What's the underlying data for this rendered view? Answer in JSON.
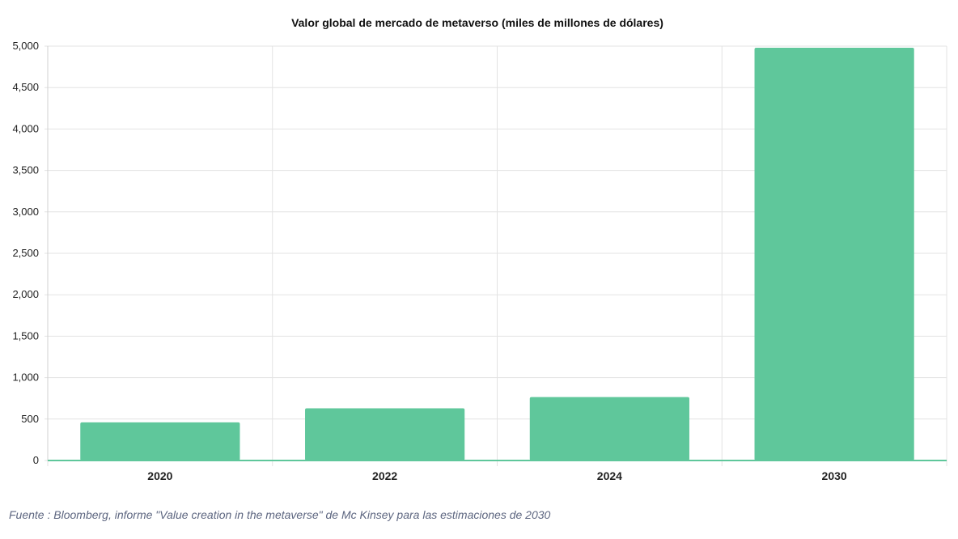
{
  "chart_data": {
    "type": "bar",
    "title": "Valor global de mercado de metaverso (miles de millones de dólares)",
    "categories": [
      "2020",
      "2022",
      "2024",
      "2030"
    ],
    "values": [
      460,
      630,
      765,
      4980
    ],
    "ylim": [
      0,
      5000
    ],
    "yticks": [
      0,
      500,
      1000,
      1500,
      2000,
      2500,
      3000,
      3500,
      4000,
      4500,
      5000
    ],
    "ytick_labels": [
      "0",
      "500",
      "1,000",
      "1,500",
      "2,000",
      "2,500",
      "3,000",
      "3,500",
      "4,000",
      "4,500",
      "5,000"
    ],
    "xlabel": "",
    "ylabel": "",
    "grid": true,
    "bar_color": "#5fc79b",
    "axis_color": "#5fc79b"
  },
  "source_note": "Fuente : Bloomberg, informe \"Value creation in the metaverse\" de Mc Kinsey para las estimaciones de 2030"
}
